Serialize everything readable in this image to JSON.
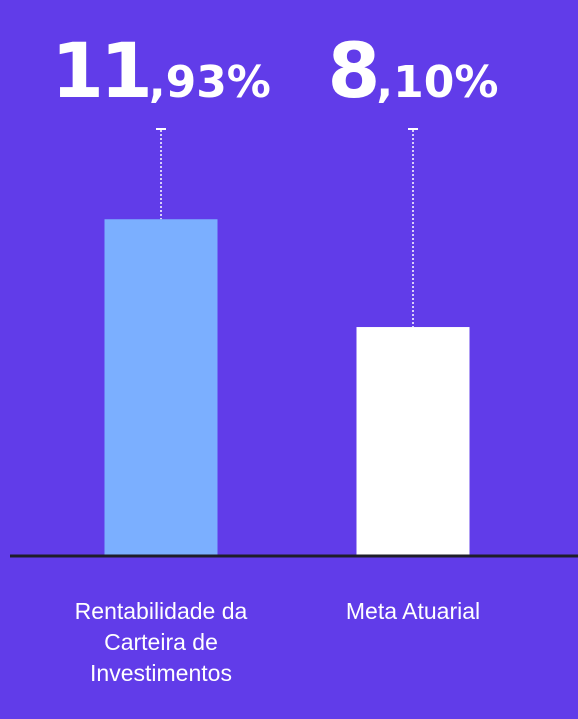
{
  "chart_data": {
    "type": "bar",
    "categories": [
      "Rentabilidade da Carteira de Investimentos",
      "Meta Atuarial"
    ],
    "values": [
      11.93,
      8.1
    ],
    "value_labels": [
      "11,93%",
      "8,10%"
    ],
    "colors": [
      "#7bafff",
      "#ffffff"
    ],
    "ylim": [
      0,
      14
    ]
  }
}
